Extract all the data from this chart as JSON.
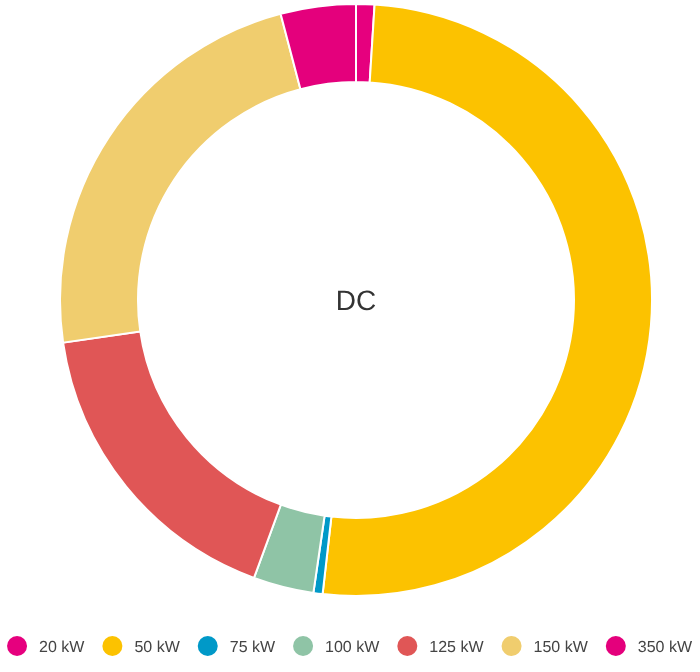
{
  "chart_data": {
    "type": "donut",
    "title": "DC",
    "categories": [
      "20 kW",
      "50 kW",
      "75 kW",
      "100 kW",
      "125 kW",
      "150 kW",
      "350 kW"
    ],
    "values": [
      1.0,
      50.8,
      0.5,
      3.3,
      17.1,
      23.2,
      4.1
    ],
    "colors": [
      "#e6007e",
      "#fcc200",
      "#0099c8",
      "#8fc4a6",
      "#e05656",
      "#f0cd6e",
      "#e4007c"
    ],
    "legend": "bottom"
  }
}
